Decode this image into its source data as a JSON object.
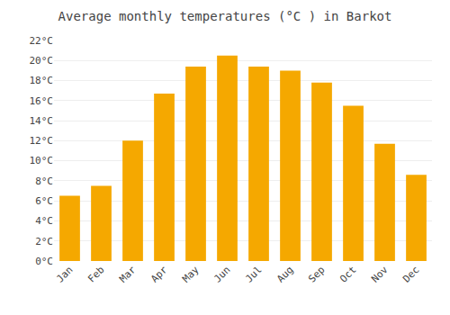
{
  "chart_data": {
    "type": "bar",
    "title": "Average monthly temperatures (°C ) in Barkot",
    "categories": [
      "Jan",
      "Feb",
      "Mar",
      "Apr",
      "May",
      "Jun",
      "Jul",
      "Aug",
      "Sep",
      "Oct",
      "Nov",
      "Dec"
    ],
    "values": [
      6.5,
      7.5,
      12.0,
      16.7,
      19.4,
      20.5,
      19.4,
      19.0,
      17.8,
      15.5,
      11.7,
      8.6
    ],
    "color": "#F5A800",
    "ylim": [
      0,
      22
    ],
    "yticks": [
      {
        "value": 0,
        "label": "0°C"
      },
      {
        "value": 2,
        "label": "2°C"
      },
      {
        "value": 4,
        "label": "4°C"
      },
      {
        "value": 6,
        "label": "6°C"
      },
      {
        "value": 8,
        "label": "8°C"
      },
      {
        "value": 10,
        "label": "10°C"
      },
      {
        "value": 12,
        "label": "12°C"
      },
      {
        "value": 14,
        "label": "14°C"
      },
      {
        "value": 16,
        "label": "16°C"
      },
      {
        "value": 18,
        "label": "18°C"
      },
      {
        "value": 20,
        "label": "20°C"
      },
      {
        "value": 22,
        "label": "22°C"
      }
    ],
    "grid": true
  }
}
